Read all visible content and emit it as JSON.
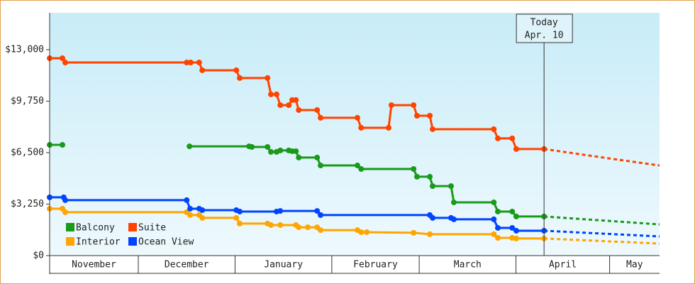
{
  "chart_data": {
    "type": "line",
    "xlim": [
      1.6,
      197
    ],
    "ylim": [
      0,
      15330
    ],
    "xticks": [
      30,
      61,
      92,
      120,
      151,
      181
    ],
    "months": [
      "November",
      "December",
      "January",
      "February",
      "March",
      "April",
      "May"
    ],
    "yticks": [
      {
        "value": 0,
        "label": "$0"
      },
      {
        "value": 3250,
        "label": "$3,250"
      },
      {
        "value": 6500,
        "label": "$6,500"
      },
      {
        "value": 9750,
        "label": "$9,750"
      },
      {
        "value": 13000,
        "label": "$13,000"
      }
    ],
    "today": {
      "x": 160,
      "label": [
        "Today",
        "Apr. 10"
      ]
    },
    "legend": "bottom-left",
    "series": [
      {
        "name": "Balcony",
        "color": "#1a9a1a",
        "x": [
          1.6,
          5.7,
          25,
          46.4,
          65.5,
          66.4,
          71.4,
          72.5,
          74.3,
          75.5,
          78.2,
          79.3,
          80.5,
          81.4,
          87.3,
          88.4,
          100.2,
          101.4,
          118.2,
          119.3,
          123.4,
          124.3,
          130.2,
          131.1,
          143.9,
          145.2,
          149.8,
          151.1,
          160
        ],
        "values": [
          6990,
          6990,
          null,
          6900,
          6900,
          6860,
          6860,
          6550,
          6550,
          6640,
          6640,
          6590,
          6590,
          6190,
          6190,
          5690,
          5690,
          5470,
          5470,
          4980,
          4980,
          4390,
          4390,
          3360,
          3360,
          2780,
          2780,
          2470,
          2470
        ],
        "forecast": {
          "x": [
            160,
            197
          ],
          "values": [
            2470,
            1970
          ]
        }
      },
      {
        "name": "Suite",
        "color": "#ff4400",
        "x": [
          1.6,
          5.7,
          6.6,
          45.5,
          46.8,
          49.5,
          50.5,
          61.4,
          62.5,
          71.4,
          72.5,
          74.3,
          75.5,
          78.2,
          79.3,
          80.5,
          81.4,
          87.3,
          88.4,
          100.2,
          101.4,
          110.2,
          111.1,
          118.2,
          119.3,
          123.4,
          124.3,
          143.9,
          145.2,
          149.8,
          151.1,
          160
        ],
        "values": [
          12460,
          12460,
          12190,
          12190,
          12190,
          12190,
          11700,
          11700,
          11210,
          11210,
          10180,
          10180,
          9500,
          9500,
          9820,
          9820,
          9190,
          9190,
          8700,
          8700,
          8070,
          8070,
          9500,
          9500,
          8830,
          8830,
          7980,
          7980,
          7400,
          7400,
          6730,
          6730
        ],
        "forecast": {
          "x": [
            160,
            178.9,
            197
          ],
          "values": [
            6730,
            6190,
            5690
          ]
        }
      },
      {
        "name": "Interior",
        "color": "#ffa500",
        "x": [
          1.6,
          5.7,
          6.6,
          45.5,
          46.6,
          49.5,
          50.5,
          61.4,
          62.5,
          71.4,
          72.5,
          75.5,
          80.5,
          81.4,
          84.3,
          87.3,
          88.4,
          100.2,
          101.4,
          103.2,
          118.2,
          123.4,
          143.9,
          145.2,
          149.8,
          151.1,
          160
        ],
        "values": [
          2960,
          2960,
          2740,
          2740,
          2560,
          2560,
          2380,
          2380,
          2020,
          2020,
          1930,
          1930,
          1930,
          1790,
          1790,
          1790,
          1610,
          1610,
          1480,
          1480,
          1440,
          1350,
          1350,
          1120,
          1120,
          1080,
          1080
        ],
        "forecast": {
          "x": [
            160,
            197
          ],
          "values": [
            1080,
            760
          ]
        }
      },
      {
        "name": "Ocean View",
        "color": "#0044ff",
        "x": [
          1.6,
          6.1,
          6.6,
          45.5,
          46.6,
          49.5,
          50.5,
          61.4,
          62.5,
          74.3,
          75.5,
          87.3,
          88.4,
          123.4,
          124.3,
          130.2,
          131.1,
          143.9,
          145.2,
          149.8,
          151.1,
          160
        ],
        "values": [
          3680,
          3680,
          3500,
          3500,
          2960,
          2960,
          2870,
          2870,
          2780,
          2780,
          2820,
          2820,
          2560,
          2560,
          2380,
          2380,
          2290,
          2290,
          1750,
          1750,
          1570,
          1570
        ],
        "forecast": {
          "x": [
            160,
            197
          ],
          "values": [
            1570,
            1210
          ]
        }
      }
    ]
  }
}
